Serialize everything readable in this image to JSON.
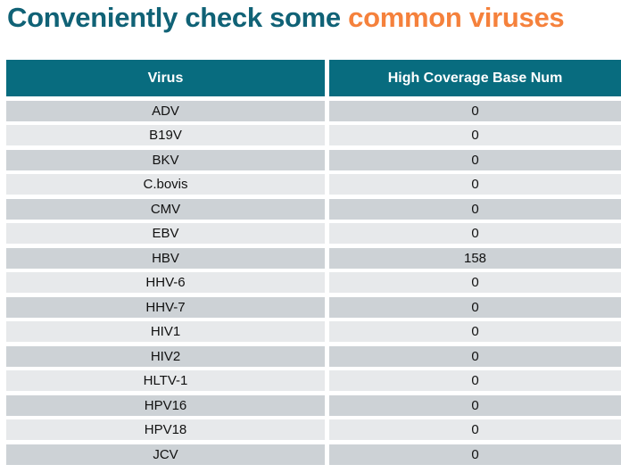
{
  "title": {
    "teal_part": "Conveniently check some ",
    "orange_part": "common viruses"
  },
  "table": {
    "columns": [
      "Virus",
      "High Coverage Base Num"
    ],
    "rows": [
      {
        "virus": "ADV",
        "value": "0"
      },
      {
        "virus": "B19V",
        "value": "0"
      },
      {
        "virus": "BKV",
        "value": "0"
      },
      {
        "virus": "C.bovis",
        "value": "0"
      },
      {
        "virus": "CMV",
        "value": "0"
      },
      {
        "virus": "EBV",
        "value": "0"
      },
      {
        "virus": "HBV",
        "value": "158"
      },
      {
        "virus": "HHV-6",
        "value": "0"
      },
      {
        "virus": "HHV-7",
        "value": "0"
      },
      {
        "virus": "HIV1",
        "value": "0"
      },
      {
        "virus": "HIV2",
        "value": "0"
      },
      {
        "virus": "HLTV-1",
        "value": "0"
      },
      {
        "virus": "HPV16",
        "value": "0"
      },
      {
        "virus": "HPV18",
        "value": "0"
      },
      {
        "virus": "JCV",
        "value": "0"
      }
    ]
  },
  "colors": {
    "title_teal": "#106276",
    "title_orange": "#F5813C",
    "header_background": "#086C7F",
    "row_dark": "#CDD2D6",
    "row_light": "#E7E9EB",
    "cell_text": "#111111"
  }
}
